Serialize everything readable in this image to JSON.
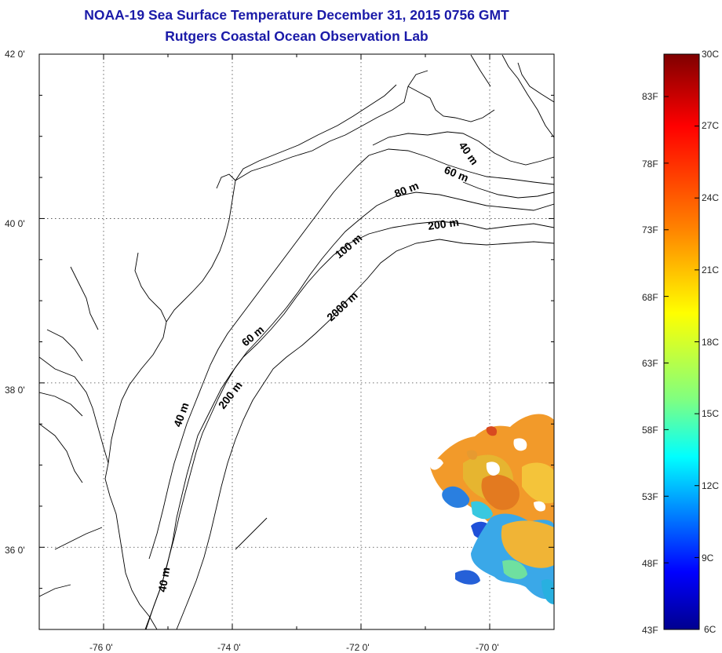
{
  "title": "NOAA-19 Sea Surface Temperature December 31, 2015 0756 GMT",
  "subtitle": "Rutgers Coastal Ocean Observation Lab",
  "map": {
    "lon_range": [
      -77,
      -69
    ],
    "lat_range": [
      35,
      42
    ],
    "lon_labels": [
      {
        "lon": -76,
        "label": "-76 0'"
      },
      {
        "lon": -74,
        "label": "-74 0'"
      },
      {
        "lon": -72,
        "label": "-72 0'"
      },
      {
        "lon": -70,
        "label": "-70 0'"
      }
    ],
    "lat_labels": [
      {
        "lat": 42,
        "label": "42 0'"
      },
      {
        "lat": 40,
        "label": "40 0'"
      },
      {
        "lat": 38,
        "label": "38 0'"
      },
      {
        "lat": 36,
        "label": "36 0'"
      }
    ],
    "isobath_labels": [
      "40 m",
      "60 m",
      "80 m",
      "200 m",
      "100 m",
      "2000 m",
      "60 m",
      "200 m",
      "40 m",
      "40 m"
    ]
  },
  "colorbar": {
    "celsius_labels": [
      "30C",
      "27C",
      "24C",
      "21C",
      "18C",
      "15C",
      "12C",
      "9C",
      "6C"
    ],
    "fahrenheit_labels": [
      "83F",
      "78F",
      "73F",
      "68F",
      "63F",
      "58F",
      "53F",
      "48F",
      "43F"
    ],
    "colors": [
      "#7f0000",
      "#ff0000",
      "#ff8000",
      "#ffff00",
      "#80ff80",
      "#00ffff",
      "#0080ff",
      "#0000ff",
      "#00008f"
    ]
  }
}
